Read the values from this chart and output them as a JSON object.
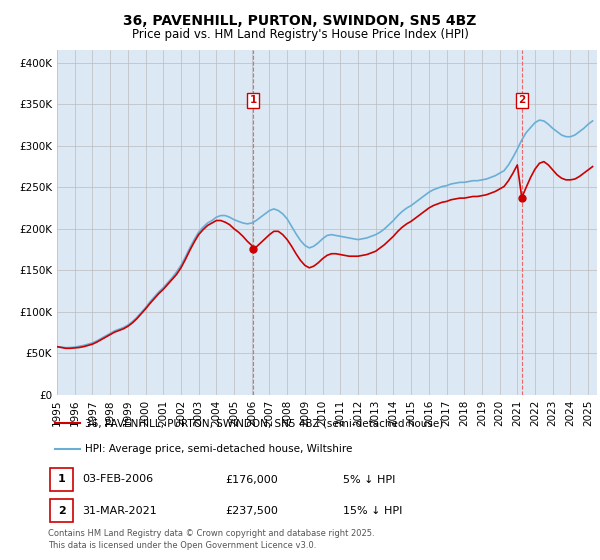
{
  "title": "36, PAVENHILL, PURTON, SWINDON, SN5 4BZ",
  "subtitle": "Price paid vs. HM Land Registry's House Price Index (HPI)",
  "ytick_values": [
    0,
    50000,
    100000,
    150000,
    200000,
    250000,
    300000,
    350000,
    400000
  ],
  "ylim": [
    0,
    415000
  ],
  "chart_bg_color": "#dce9f5",
  "hpi_color": "#6aaed6",
  "price_color": "#cc0000",
  "vline_color": "#ee6666",
  "marker1_date": "03-FEB-2006",
  "marker1_price": 176000,
  "marker1_label": "5% ↓ HPI",
  "marker1_x": 2006.08,
  "marker1_y": 176000,
  "marker2_date": "31-MAR-2021",
  "marker2_price": 237500,
  "marker2_label": "15% ↓ HPI",
  "marker2_x": 2021.25,
  "marker2_y": 237500,
  "legend1": "36, PAVENHILL, PURTON, SWINDON, SN5 4BZ (semi-detached house)",
  "legend2": "HPI: Average price, semi-detached house, Wiltshire",
  "footnote": "Contains HM Land Registry data © Crown copyright and database right 2025.\nThis data is licensed under the Open Government Licence v3.0.",
  "background_color": "#ffffff",
  "xlim_left": 1995.0,
  "xlim_right": 2025.5,
  "hpi_data": [
    [
      1995.0,
      58000
    ],
    [
      1995.25,
      57500
    ],
    [
      1995.5,
      56800
    ],
    [
      1995.75,
      57000
    ],
    [
      1996.0,
      57500
    ],
    [
      1996.25,
      58500
    ],
    [
      1996.5,
      59500
    ],
    [
      1996.75,
      61000
    ],
    [
      1997.0,
      62500
    ],
    [
      1997.25,
      65000
    ],
    [
      1997.5,
      68000
    ],
    [
      1997.75,
      71000
    ],
    [
      1998.0,
      74000
    ],
    [
      1998.25,
      77000
    ],
    [
      1998.5,
      79000
    ],
    [
      1998.75,
      81000
    ],
    [
      1999.0,
      84000
    ],
    [
      1999.25,
      88000
    ],
    [
      1999.5,
      93000
    ],
    [
      1999.75,
      99000
    ],
    [
      2000.0,
      105000
    ],
    [
      2000.25,
      112000
    ],
    [
      2000.5,
      118000
    ],
    [
      2000.75,
      124000
    ],
    [
      2001.0,
      129000
    ],
    [
      2001.25,
      135000
    ],
    [
      2001.5,
      141000
    ],
    [
      2001.75,
      148000
    ],
    [
      2002.0,
      156000
    ],
    [
      2002.25,
      166000
    ],
    [
      2002.5,
      177000
    ],
    [
      2002.75,
      187000
    ],
    [
      2003.0,
      196000
    ],
    [
      2003.25,
      202000
    ],
    [
      2003.5,
      207000
    ],
    [
      2003.75,
      210000
    ],
    [
      2004.0,
      214000
    ],
    [
      2004.25,
      216000
    ],
    [
      2004.5,
      216000
    ],
    [
      2004.75,
      214000
    ],
    [
      2005.0,
      211000
    ],
    [
      2005.25,
      209000
    ],
    [
      2005.5,
      207000
    ],
    [
      2005.75,
      206000
    ],
    [
      2006.0,
      207000
    ],
    [
      2006.25,
      210000
    ],
    [
      2006.5,
      214000
    ],
    [
      2006.75,
      218000
    ],
    [
      2007.0,
      222000
    ],
    [
      2007.25,
      224000
    ],
    [
      2007.5,
      222000
    ],
    [
      2007.75,
      218000
    ],
    [
      2008.0,
      212000
    ],
    [
      2008.25,
      203000
    ],
    [
      2008.5,
      194000
    ],
    [
      2008.75,
      186000
    ],
    [
      2009.0,
      180000
    ],
    [
      2009.25,
      177000
    ],
    [
      2009.5,
      179000
    ],
    [
      2009.75,
      183000
    ],
    [
      2010.0,
      188000
    ],
    [
      2010.25,
      192000
    ],
    [
      2010.5,
      193000
    ],
    [
      2010.75,
      192000
    ],
    [
      2011.0,
      191000
    ],
    [
      2011.25,
      190000
    ],
    [
      2011.5,
      189000
    ],
    [
      2011.75,
      188000
    ],
    [
      2012.0,
      187000
    ],
    [
      2012.25,
      188000
    ],
    [
      2012.5,
      189000
    ],
    [
      2012.75,
      191000
    ],
    [
      2013.0,
      193000
    ],
    [
      2013.25,
      196000
    ],
    [
      2013.5,
      200000
    ],
    [
      2013.75,
      205000
    ],
    [
      2014.0,
      210000
    ],
    [
      2014.25,
      216000
    ],
    [
      2014.5,
      221000
    ],
    [
      2014.75,
      225000
    ],
    [
      2015.0,
      228000
    ],
    [
      2015.25,
      232000
    ],
    [
      2015.5,
      236000
    ],
    [
      2015.75,
      240000
    ],
    [
      2016.0,
      244000
    ],
    [
      2016.25,
      247000
    ],
    [
      2016.5,
      249000
    ],
    [
      2016.75,
      251000
    ],
    [
      2017.0,
      252000
    ],
    [
      2017.25,
      254000
    ],
    [
      2017.5,
      255000
    ],
    [
      2017.75,
      256000
    ],
    [
      2018.0,
      256000
    ],
    [
      2018.25,
      257000
    ],
    [
      2018.5,
      258000
    ],
    [
      2018.75,
      258000
    ],
    [
      2019.0,
      259000
    ],
    [
      2019.25,
      260000
    ],
    [
      2019.5,
      262000
    ],
    [
      2019.75,
      264000
    ],
    [
      2020.0,
      267000
    ],
    [
      2020.25,
      270000
    ],
    [
      2020.5,
      277000
    ],
    [
      2020.75,
      286000
    ],
    [
      2021.0,
      296000
    ],
    [
      2021.25,
      307000
    ],
    [
      2021.5,
      316000
    ],
    [
      2021.75,
      322000
    ],
    [
      2022.0,
      328000
    ],
    [
      2022.25,
      331000
    ],
    [
      2022.5,
      330000
    ],
    [
      2022.75,
      326000
    ],
    [
      2023.0,
      321000
    ],
    [
      2023.25,
      317000
    ],
    [
      2023.5,
      313000
    ],
    [
      2023.75,
      311000
    ],
    [
      2024.0,
      311000
    ],
    [
      2024.25,
      313000
    ],
    [
      2024.5,
      317000
    ],
    [
      2024.75,
      321000
    ],
    [
      2025.0,
      326000
    ],
    [
      2025.25,
      330000
    ]
  ],
  "price_data": [
    [
      1995.0,
      58000
    ],
    [
      1995.25,
      57000
    ],
    [
      1995.5,
      56000
    ],
    [
      1995.75,
      56000
    ],
    [
      1996.0,
      56500
    ],
    [
      1996.25,
      57000
    ],
    [
      1996.5,
      58000
    ],
    [
      1996.75,
      59500
    ],
    [
      1997.0,
      61000
    ],
    [
      1997.25,
      63500
    ],
    [
      1997.5,
      66500
    ],
    [
      1997.75,
      69500
    ],
    [
      1998.0,
      72500
    ],
    [
      1998.25,
      75500
    ],
    [
      1998.5,
      77500
    ],
    [
      1998.75,
      79500
    ],
    [
      1999.0,
      82500
    ],
    [
      1999.25,
      86500
    ],
    [
      1999.5,
      91500
    ],
    [
      1999.75,
      97500
    ],
    [
      2000.0,
      103500
    ],
    [
      2000.25,
      110000
    ],
    [
      2000.5,
      116000
    ],
    [
      2000.75,
      122000
    ],
    [
      2001.0,
      127000
    ],
    [
      2001.25,
      133000
    ],
    [
      2001.5,
      139000
    ],
    [
      2001.75,
      145000
    ],
    [
      2002.0,
      153000
    ],
    [
      2002.25,
      163000
    ],
    [
      2002.5,
      174000
    ],
    [
      2002.75,
      184000
    ],
    [
      2003.0,
      193000
    ],
    [
      2003.25,
      199000
    ],
    [
      2003.5,
      204000
    ],
    [
      2003.75,
      207000
    ],
    [
      2004.0,
      210000
    ],
    [
      2004.25,
      210000
    ],
    [
      2004.5,
      208000
    ],
    [
      2004.75,
      205000
    ],
    [
      2005.0,
      200000
    ],
    [
      2005.25,
      196000
    ],
    [
      2005.5,
      191000
    ],
    [
      2005.75,
      185000
    ],
    [
      2006.0,
      180000
    ],
    [
      2006.08,
      176000
    ],
    [
      2006.25,
      178000
    ],
    [
      2006.5,
      183000
    ],
    [
      2006.75,
      188000
    ],
    [
      2007.0,
      193000
    ],
    [
      2007.25,
      197000
    ],
    [
      2007.5,
      197000
    ],
    [
      2007.75,
      193000
    ],
    [
      2008.0,
      187000
    ],
    [
      2008.25,
      179000
    ],
    [
      2008.5,
      170000
    ],
    [
      2008.75,
      162000
    ],
    [
      2009.0,
      156000
    ],
    [
      2009.25,
      153000
    ],
    [
      2009.5,
      155000
    ],
    [
      2009.75,
      159000
    ],
    [
      2010.0,
      164000
    ],
    [
      2010.25,
      168000
    ],
    [
      2010.5,
      170000
    ],
    [
      2010.75,
      170000
    ],
    [
      2011.0,
      169000
    ],
    [
      2011.25,
      168000
    ],
    [
      2011.5,
      167000
    ],
    [
      2011.75,
      167000
    ],
    [
      2012.0,
      167000
    ],
    [
      2012.25,
      168000
    ],
    [
      2012.5,
      169000
    ],
    [
      2012.75,
      171000
    ],
    [
      2013.0,
      173000
    ],
    [
      2013.25,
      177000
    ],
    [
      2013.5,
      181000
    ],
    [
      2013.75,
      186000
    ],
    [
      2014.0,
      191000
    ],
    [
      2014.25,
      197000
    ],
    [
      2014.5,
      202000
    ],
    [
      2014.75,
      206000
    ],
    [
      2015.0,
      209000
    ],
    [
      2015.25,
      213000
    ],
    [
      2015.5,
      217000
    ],
    [
      2015.75,
      221000
    ],
    [
      2016.0,
      225000
    ],
    [
      2016.25,
      228000
    ],
    [
      2016.5,
      230000
    ],
    [
      2016.75,
      232000
    ],
    [
      2017.0,
      233000
    ],
    [
      2017.25,
      235000
    ],
    [
      2017.5,
      236000
    ],
    [
      2017.75,
      237000
    ],
    [
      2018.0,
      237000
    ],
    [
      2018.25,
      238000
    ],
    [
      2018.5,
      239000
    ],
    [
      2018.75,
      239000
    ],
    [
      2019.0,
      240000
    ],
    [
      2019.25,
      241000
    ],
    [
      2019.5,
      243000
    ],
    [
      2019.75,
      245000
    ],
    [
      2020.0,
      248000
    ],
    [
      2020.25,
      251000
    ],
    [
      2020.5,
      258000
    ],
    [
      2020.75,
      267000
    ],
    [
      2021.0,
      277000
    ],
    [
      2021.25,
      237500
    ],
    [
      2021.5,
      250000
    ],
    [
      2021.75,
      262000
    ],
    [
      2022.0,
      272000
    ],
    [
      2022.25,
      279000
    ],
    [
      2022.5,
      281000
    ],
    [
      2022.75,
      277000
    ],
    [
      2023.0,
      271000
    ],
    [
      2023.25,
      265000
    ],
    [
      2023.5,
      261000
    ],
    [
      2023.75,
      259000
    ],
    [
      2024.0,
      259000
    ],
    [
      2024.25,
      260000
    ],
    [
      2024.5,
      263000
    ],
    [
      2024.75,
      267000
    ],
    [
      2025.0,
      271000
    ],
    [
      2025.25,
      275000
    ]
  ]
}
